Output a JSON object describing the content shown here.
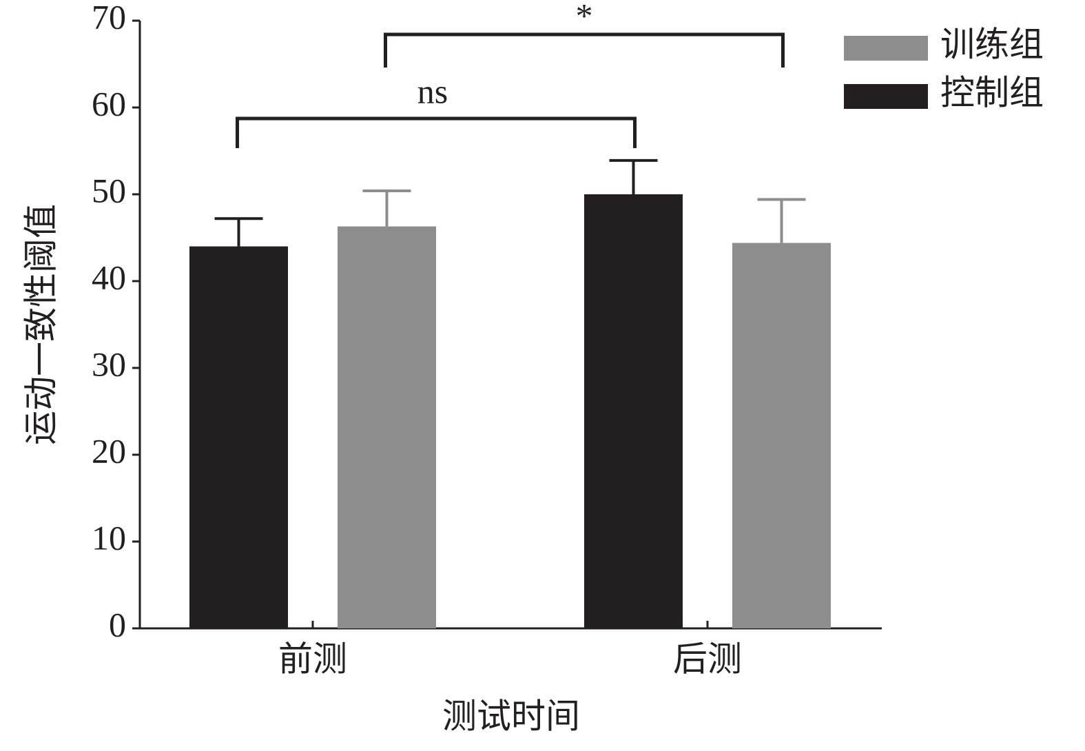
{
  "chart_data": {
    "type": "bar",
    "x_label": "测试时间",
    "y_label": "运动一致性阈值",
    "categories": [
      "前测",
      "后测"
    ],
    "series": [
      {
        "name": "训练组",
        "color": "#8e8d8e",
        "values": [
          46.3,
          44.4
        ],
        "errors": [
          4.1,
          5.0
        ]
      },
      {
        "name": "控制组",
        "color": "#231f20",
        "values": [
          44.0,
          50.0
        ],
        "errors": [
          3.2,
          3.9
        ]
      }
    ],
    "annotations": [
      "ns",
      "*"
    ],
    "ylim": [
      0,
      70
    ],
    "yticks": [
      0,
      10,
      20,
      30,
      40,
      50,
      60,
      70
    ],
    "legend": "top-right"
  }
}
